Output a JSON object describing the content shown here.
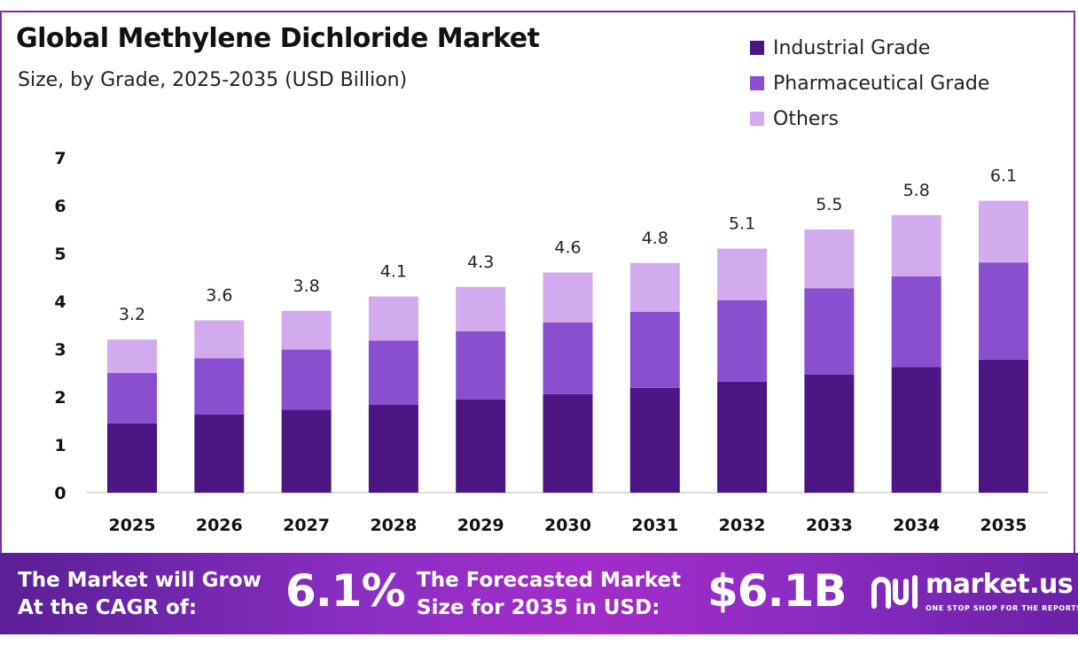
{
  "header": {
    "title": "Global Methylene Dichloride Market",
    "subtitle": "Size, by Grade, 2025-2035 (USD Billion)"
  },
  "legend": [
    {
      "label": "Industrial Grade",
      "color": "#4b1582"
    },
    {
      "label": "Pharmaceutical Grade",
      "color": "#8a4fcf"
    },
    {
      "label": "Others",
      "color": "#d2aaee"
    }
  ],
  "chart_data": {
    "type": "bar",
    "stacked": true,
    "categories": [
      "2025",
      "2026",
      "2027",
      "2028",
      "2029",
      "2030",
      "2031",
      "2032",
      "2033",
      "2034",
      "2035"
    ],
    "series": [
      {
        "name": "Industrial Grade",
        "values": [
          1.45,
          1.63,
          1.73,
          1.84,
          1.95,
          2.06,
          2.19,
          2.32,
          2.47,
          2.62,
          2.78
        ],
        "color": "#4b1582"
      },
      {
        "name": "Pharmaceutical Grade",
        "values": [
          1.05,
          1.18,
          1.26,
          1.34,
          1.42,
          1.5,
          1.59,
          1.7,
          1.8,
          1.9,
          2.03
        ],
        "color": "#8a4fcf"
      },
      {
        "name": "Others",
        "values": [
          0.7,
          0.79,
          0.81,
          0.92,
          0.93,
          1.04,
          1.02,
          1.08,
          1.23,
          1.28,
          1.29
        ],
        "color": "#d2aaee"
      }
    ],
    "totals": [
      "3.2",
      "3.6",
      "3.8",
      "4.1",
      "4.3",
      "4.6",
      "4.8",
      "5.1",
      "5.5",
      "5.8",
      "6.1"
    ],
    "ylim": [
      0,
      7
    ],
    "yticks": [
      "0",
      "1",
      "2",
      "3",
      "4",
      "5",
      "6",
      "7"
    ],
    "grid": false
  },
  "banner": {
    "cagr_text_line1": "The Market will Grow",
    "cagr_text_line2": "At the CAGR of:",
    "cagr_value": "6.1%",
    "forecast_text_line1": "The Forecasted Market",
    "forecast_text_line2": "Size for 2035 in USD:",
    "forecast_value": "$6.1B",
    "logo_name": "market.us",
    "logo_tagline": "ONE STOP SHOP FOR THE REPORTS"
  }
}
